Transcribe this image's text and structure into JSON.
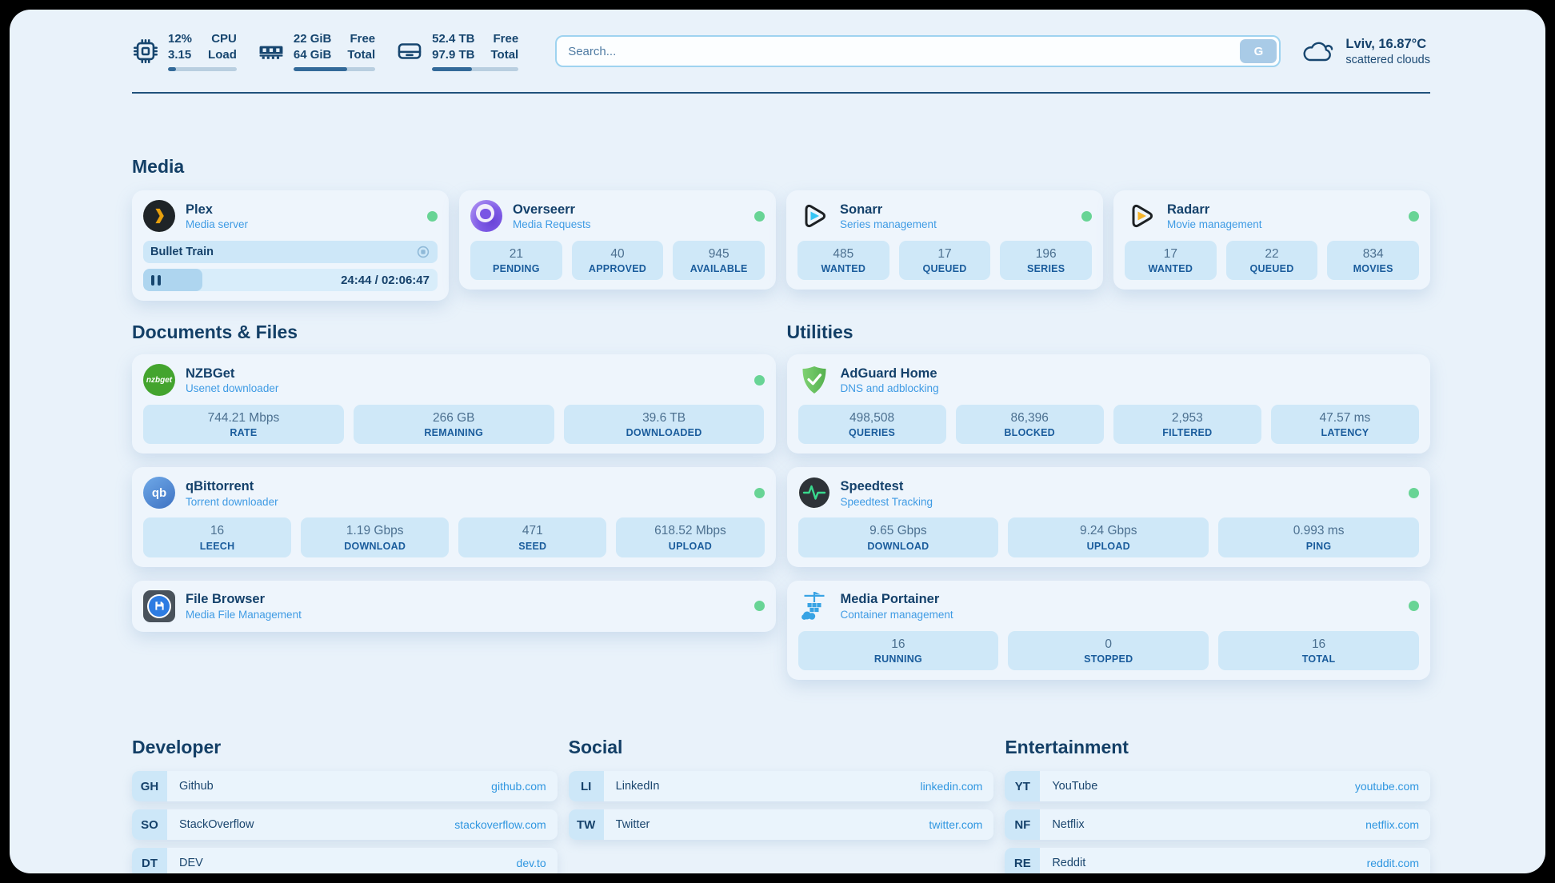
{
  "colors": {
    "accent": "#2f96e0",
    "status_online": "#68d495",
    "navy": "#17466f"
  },
  "topbar": {
    "cpu": {
      "v1": "12%",
      "v2": "3.15",
      "l1": "CPU",
      "l2": "Load",
      "progress": 12
    },
    "memory": {
      "v1": "22 GiB",
      "v2": "64 GiB",
      "l1": "Free",
      "l2": "Total",
      "progress": 66
    },
    "disk": {
      "v1": "52.4 TB",
      "v2": "97.9 TB",
      "l1": "Free",
      "l2": "Total",
      "progress": 46
    },
    "search": {
      "placeholder": "Search...",
      "provider": "G"
    },
    "weather": {
      "summary": "Lviv, 16.87°C",
      "condition": "scattered clouds"
    }
  },
  "sections": {
    "media": {
      "title": "Media",
      "plex": {
        "name": "Plex",
        "desc": "Media server",
        "online": true,
        "session": {
          "title": "Bullet Train",
          "time": "24:44 / 02:06:47",
          "progress": 20
        }
      },
      "overseerr": {
        "name": "Overseerr",
        "desc": "Media Requests",
        "online": true,
        "stats": [
          {
            "value": "21",
            "label": "PENDING"
          },
          {
            "value": "40",
            "label": "APPROVED"
          },
          {
            "value": "945",
            "label": "AVAILABLE"
          }
        ]
      },
      "sonarr": {
        "name": "Sonarr",
        "desc": "Series management",
        "online": true,
        "stats": [
          {
            "value": "485",
            "label": "WANTED"
          },
          {
            "value": "17",
            "label": "QUEUED"
          },
          {
            "value": "196",
            "label": "SERIES"
          }
        ]
      },
      "radarr": {
        "name": "Radarr",
        "desc": "Movie management",
        "online": true,
        "stats": [
          {
            "value": "17",
            "label": "WANTED"
          },
          {
            "value": "22",
            "label": "QUEUED"
          },
          {
            "value": "834",
            "label": "MOVIES"
          }
        ]
      }
    },
    "documents": {
      "title": "Documents & Files",
      "nzbget": {
        "name": "NZBGet",
        "desc": "Usenet downloader",
        "online": true,
        "icon_text": "nzbget",
        "stats": [
          {
            "value": "744.21 Mbps",
            "label": "RATE"
          },
          {
            "value": "266 GB",
            "label": "REMAINING"
          },
          {
            "value": "39.6 TB",
            "label": "DOWNLOADED"
          }
        ]
      },
      "qbittorrent": {
        "name": "qBittorrent",
        "desc": "Torrent downloader",
        "online": true,
        "icon_text": "qb",
        "stats": [
          {
            "value": "16",
            "label": "LEECH"
          },
          {
            "value": "1.19 Gbps",
            "label": "DOWNLOAD"
          },
          {
            "value": "471",
            "label": "SEED"
          },
          {
            "value": "618.52 Mbps",
            "label": "UPLOAD"
          }
        ]
      },
      "filebrowser": {
        "name": "File Browser",
        "desc": "Media File Management",
        "online": true
      }
    },
    "utilities": {
      "title": "Utilities",
      "adguard": {
        "name": "AdGuard Home",
        "desc": "DNS and adblocking",
        "online": false,
        "stats": [
          {
            "value": "498,508",
            "label": "QUERIES"
          },
          {
            "value": "86,396",
            "label": "BLOCKED"
          },
          {
            "value": "2,953",
            "label": "FILTERED"
          },
          {
            "value": "47.57 ms",
            "label": "LATENCY"
          }
        ]
      },
      "speedtest": {
        "name": "Speedtest",
        "desc": "Speedtest Tracking",
        "online": true,
        "stats": [
          {
            "value": "9.65 Gbps",
            "label": "DOWNLOAD"
          },
          {
            "value": "9.24 Gbps",
            "label": "UPLOAD"
          },
          {
            "value": "0.993 ms",
            "label": "PING"
          }
        ]
      },
      "portainer": {
        "name": "Media Portainer",
        "desc": "Container management",
        "online": true,
        "stats": [
          {
            "value": "16",
            "label": "RUNNING"
          },
          {
            "value": "0",
            "label": "STOPPED"
          },
          {
            "value": "16",
            "label": "TOTAL"
          }
        ]
      }
    },
    "developer": {
      "title": "Developer",
      "links": [
        {
          "abbr": "GH",
          "name": "Github",
          "url": "github.com"
        },
        {
          "abbr": "SO",
          "name": "StackOverflow",
          "url": "stackoverflow.com"
        },
        {
          "abbr": "DT",
          "name": "DEV",
          "url": "dev.to"
        }
      ]
    },
    "social": {
      "title": "Social",
      "links": [
        {
          "abbr": "LI",
          "name": "LinkedIn",
          "url": "linkedin.com"
        },
        {
          "abbr": "TW",
          "name": "Twitter",
          "url": "twitter.com"
        }
      ]
    },
    "entertainment": {
      "title": "Entertainment",
      "links": [
        {
          "abbr": "YT",
          "name": "YouTube",
          "url": "youtube.com"
        },
        {
          "abbr": "NF",
          "name": "Netflix",
          "url": "netflix.com"
        },
        {
          "abbr": "RE",
          "name": "Reddit",
          "url": "reddit.com"
        }
      ]
    }
  }
}
